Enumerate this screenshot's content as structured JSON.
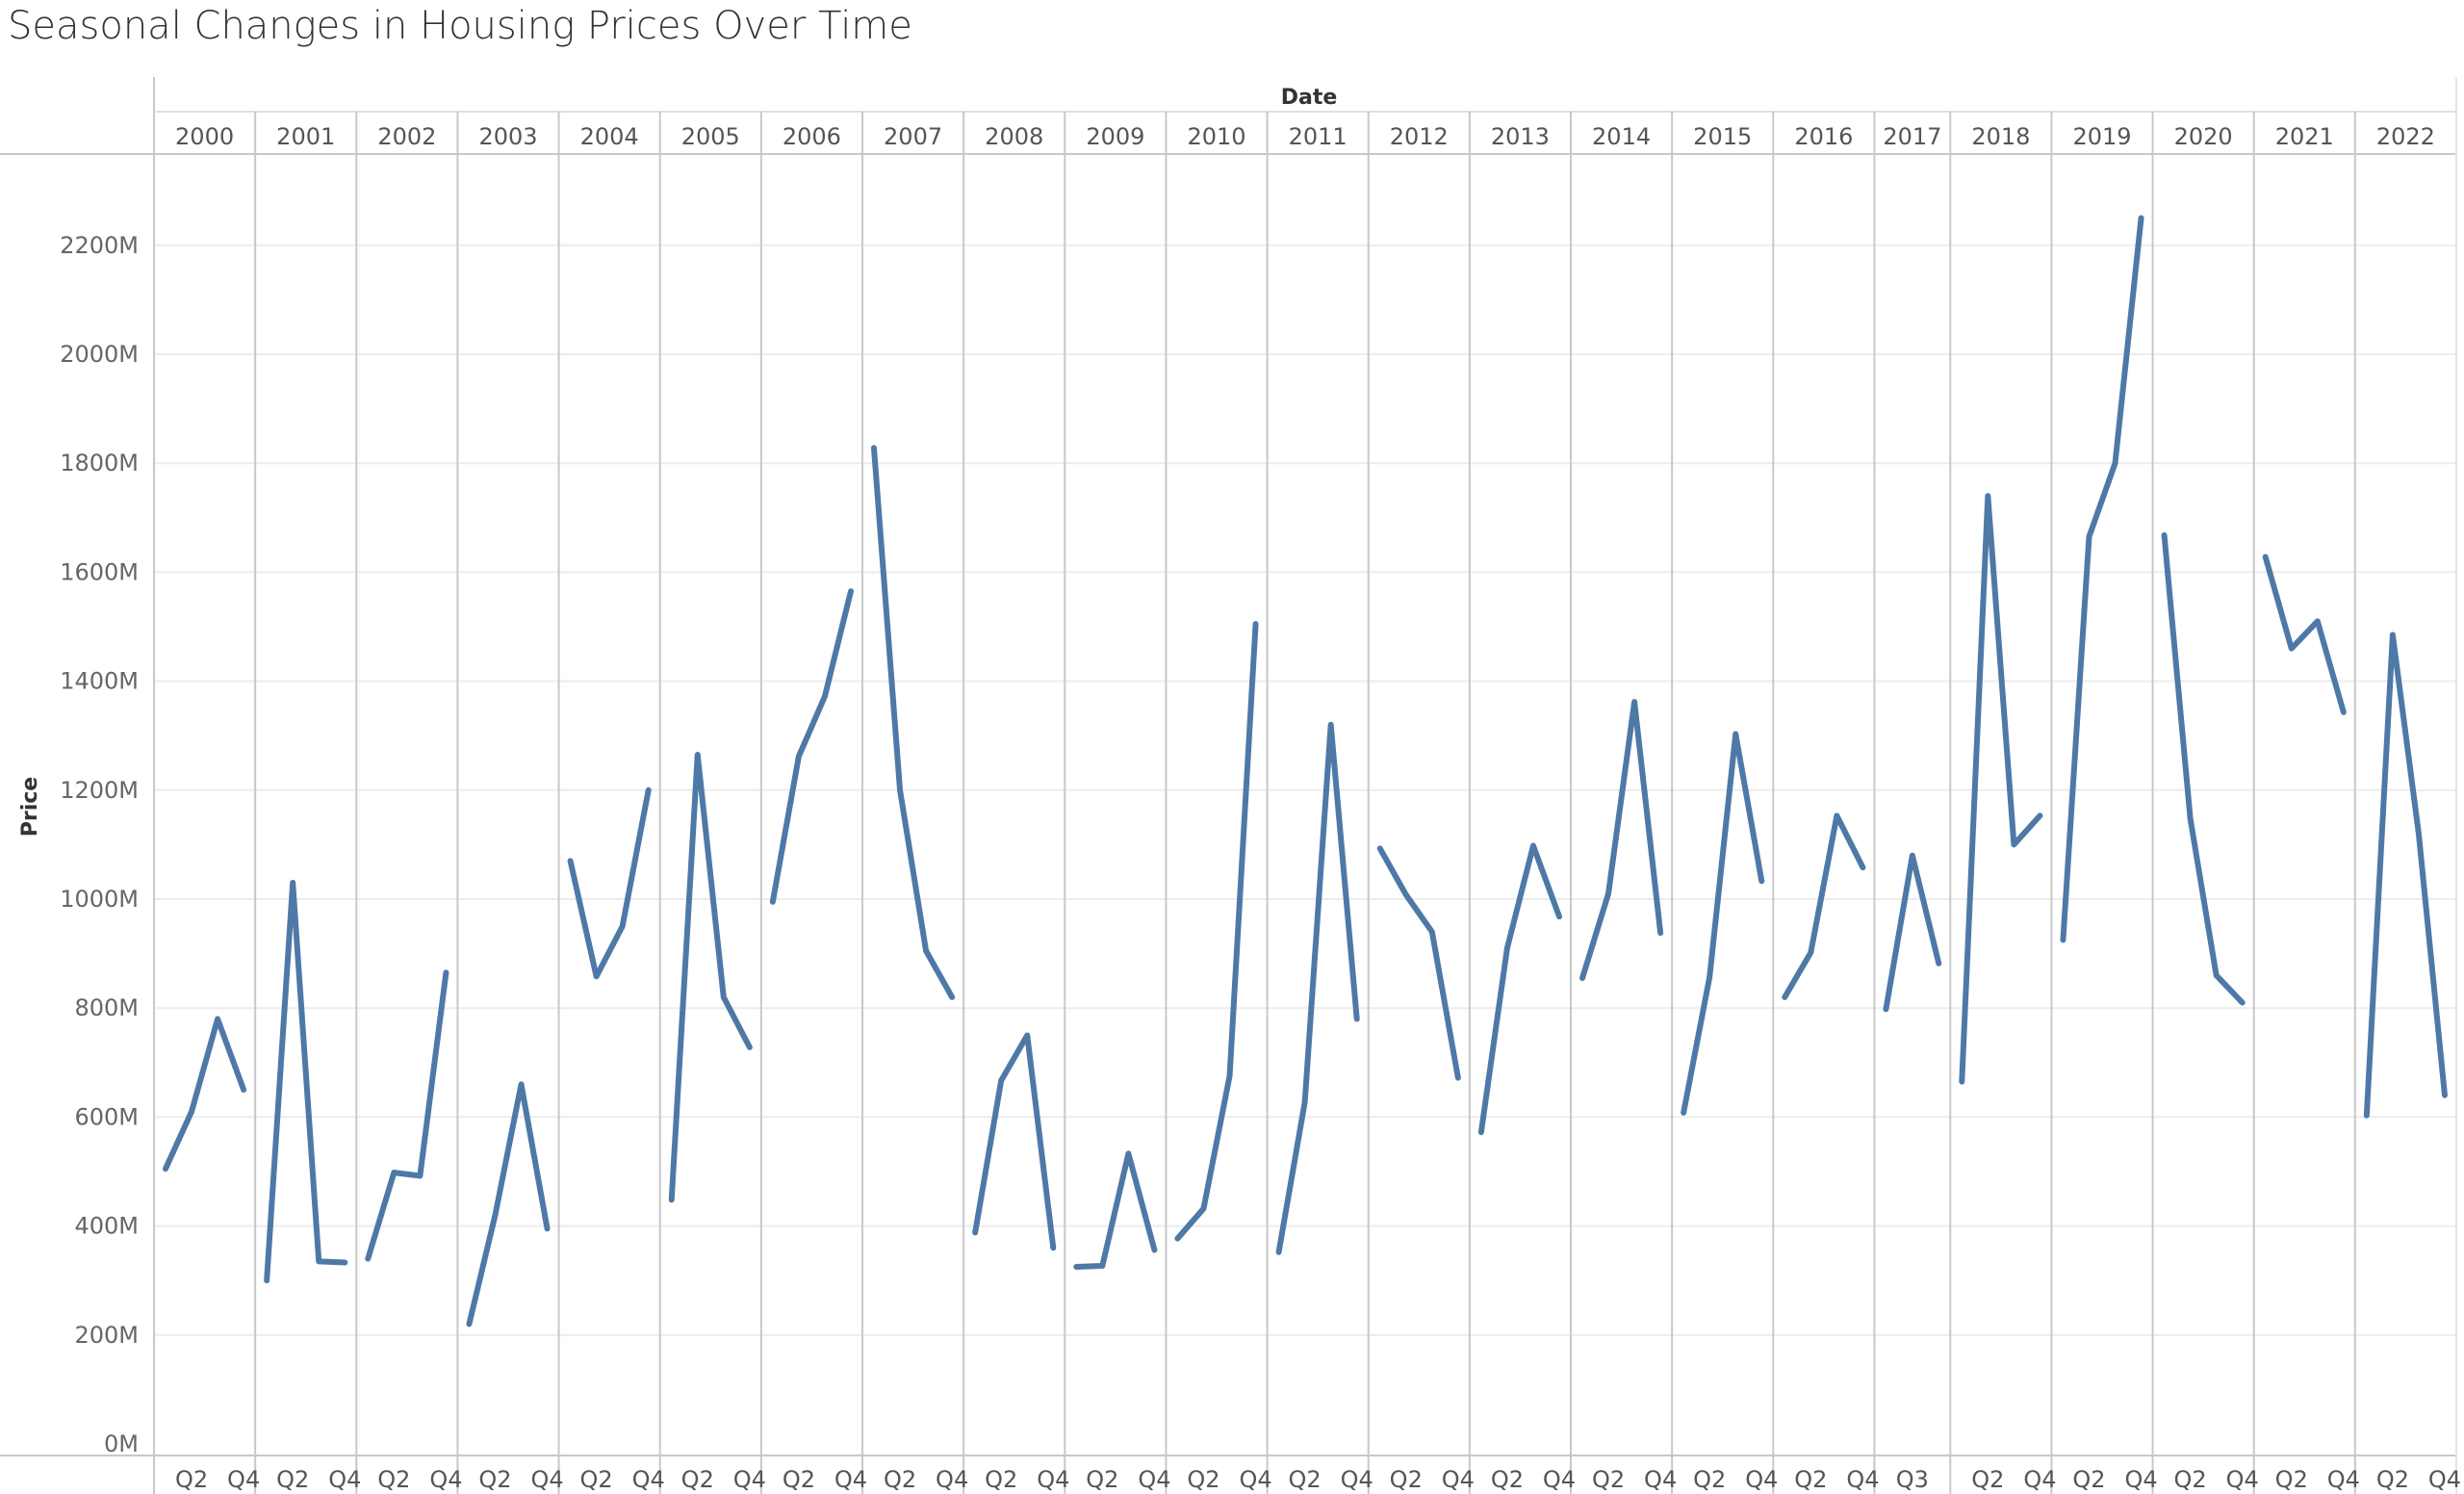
{
  "title": "Seasonal Changes in Housing Prices Over Time",
  "chart_data": {
    "type": "line",
    "title": "Seasonal Changes in Housing Prices Over Time",
    "column_header": "Date",
    "xlabel": "",
    "ylabel": "Price",
    "ylim": [
      0,
      2300000000
    ],
    "y_ticks": [
      0,
      200000000,
      400000000,
      600000000,
      800000000,
      1000000000,
      1200000000,
      1400000000,
      1600000000,
      1800000000,
      2000000000,
      2200000000
    ],
    "y_tick_labels": [
      "0M",
      "200M",
      "400M",
      "600M",
      "800M",
      "1000M",
      "1200M",
      "1400M",
      "1600M",
      "1800M",
      "2000M",
      "2200M"
    ],
    "grid": true,
    "legend": "none",
    "color": "#4e79a7",
    "series": [
      {
        "year": "2000",
        "quarters": [
          "Q1",
          "Q2",
          "Q3",
          "Q4"
        ],
        "values": [
          505000000,
          610000000,
          780000000,
          650000000
        ],
        "tick_labels": [
          "Q2",
          "Q4"
        ]
      },
      {
        "year": "2001",
        "quarters": [
          "Q1",
          "Q2",
          "Q3",
          "Q4"
        ],
        "values": [
          300000000,
          1030000000,
          335000000,
          333000000
        ],
        "tick_labels": [
          "Q2",
          "Q4"
        ]
      },
      {
        "year": "2002",
        "quarters": [
          "Q1",
          "Q2",
          "Q3",
          "Q4"
        ],
        "values": [
          340000000,
          498000000,
          492000000,
          865000000
        ],
        "tick_labels": [
          "Q2",
          "Q4"
        ]
      },
      {
        "year": "2003",
        "quarters": [
          "Q1",
          "Q2",
          "Q3",
          "Q4"
        ],
        "values": [
          220000000,
          420000000,
          660000000,
          395000000
        ],
        "tick_labels": [
          "Q2",
          "Q4"
        ]
      },
      {
        "year": "2004",
        "quarters": [
          "Q1",
          "Q2",
          "Q3",
          "Q4"
        ],
        "values": [
          1070000000,
          858000000,
          950000000,
          1200000000
        ],
        "tick_labels": [
          "Q2",
          "Q4"
        ]
      },
      {
        "year": "2005",
        "quarters": [
          "Q1",
          "Q2",
          "Q3",
          "Q4"
        ],
        "values": [
          448000000,
          1265000000,
          820000000,
          728000000
        ],
        "tick_labels": [
          "Q2",
          "Q4"
        ]
      },
      {
        "year": "2006",
        "quarters": [
          "Q1",
          "Q2",
          "Q3",
          "Q4"
        ],
        "values": [
          995000000,
          1262000000,
          1372000000,
          1565000000
        ],
        "tick_labels": [
          "Q2",
          "Q4"
        ]
      },
      {
        "year": "2007",
        "quarters": [
          "Q1",
          "Q2",
          "Q3",
          "Q4"
        ],
        "values": [
          1828000000,
          1200000000,
          905000000,
          820000000
        ],
        "tick_labels": [
          "Q2",
          "Q4"
        ]
      },
      {
        "year": "2008",
        "quarters": [
          "Q1",
          "Q2",
          "Q3",
          "Q4"
        ],
        "values": [
          388000000,
          667000000,
          750000000,
          360000000
        ],
        "tick_labels": [
          "Q2",
          "Q4"
        ]
      },
      {
        "year": "2009",
        "quarters": [
          "Q1",
          "Q2",
          "Q3",
          "Q4"
        ],
        "values": [
          325000000,
          327000000,
          533000000,
          356000000
        ],
        "tick_labels": [
          "Q2",
          "Q4"
        ]
      },
      {
        "year": "2010",
        "quarters": [
          "Q1",
          "Q2",
          "Q3",
          "Q4"
        ],
        "values": [
          377000000,
          432000000,
          675000000,
          1505000000
        ],
        "tick_labels": [
          "Q2",
          "Q4"
        ]
      },
      {
        "year": "2011",
        "quarters": [
          "Q1",
          "Q2",
          "Q3",
          "Q4"
        ],
        "values": [
          352000000,
          627000000,
          1320000000,
          780000000
        ],
        "tick_labels": [
          "Q2",
          "Q4"
        ]
      },
      {
        "year": "2012",
        "quarters": [
          "Q1",
          "Q2",
          "Q3",
          "Q4"
        ],
        "values": [
          1093000000,
          1008000000,
          940000000,
          672000000
        ],
        "tick_labels": [
          "Q2",
          "Q4"
        ]
      },
      {
        "year": "2013",
        "quarters": [
          "Q1",
          "Q2",
          "Q3",
          "Q4"
        ],
        "values": [
          572000000,
          910000000,
          1098000000,
          968000000
        ],
        "tick_labels": [
          "Q2",
          "Q4"
        ]
      },
      {
        "year": "2014",
        "quarters": [
          "Q1",
          "Q2",
          "Q3",
          "Q4"
        ],
        "values": [
          855000000,
          1010000000,
          1362000000,
          938000000
        ],
        "tick_labels": [
          "Q2",
          "Q4"
        ]
      },
      {
        "year": "2015",
        "quarters": [
          "Q1",
          "Q2",
          "Q3",
          "Q4"
        ],
        "values": [
          608000000,
          857000000,
          1303000000,
          1033000000
        ],
        "tick_labels": [
          "Q2",
          "Q4"
        ]
      },
      {
        "year": "2016",
        "quarters": [
          "Q1",
          "Q2",
          "Q3",
          "Q4"
        ],
        "values": [
          820000000,
          902000000,
          1153000000,
          1058000000
        ],
        "tick_labels": [
          "Q2",
          "Q4"
        ]
      },
      {
        "year": "2017",
        "quarters": [
          "Q2",
          "Q3",
          "Q4"
        ],
        "values": [
          798000000,
          1080000000,
          882000000
        ],
        "tick_labels": [
          "Q3"
        ]
      },
      {
        "year": "2018",
        "quarters": [
          "Q1",
          "Q2",
          "Q3",
          "Q4"
        ],
        "values": [
          665000000,
          1740000000,
          1100000000,
          1153000000
        ],
        "tick_labels": [
          "Q2",
          "Q4"
        ]
      },
      {
        "year": "2019",
        "quarters": [
          "Q1",
          "Q2",
          "Q3",
          "Q4"
        ],
        "values": [
          925000000,
          1665000000,
          1800000000,
          2250000000
        ],
        "tick_labels": [
          "Q2",
          "Q4"
        ]
      },
      {
        "year": "2020",
        "quarters": [
          "Q1",
          "Q2",
          "Q3",
          "Q4"
        ],
        "values": [
          1668000000,
          1148000000,
          860000000,
          810000000
        ],
        "tick_labels": [
          "Q2",
          "Q4"
        ]
      },
      {
        "year": "2021",
        "quarters": [
          "Q1",
          "Q2",
          "Q3",
          "Q4"
        ],
        "values": [
          1628000000,
          1460000000,
          1510000000,
          1343000000
        ],
        "tick_labels": [
          "Q2",
          "Q4"
        ]
      },
      {
        "year": "2022",
        "quarters": [
          "Q1",
          "Q2",
          "Q3",
          "Q4"
        ],
        "values": [
          603000000,
          1485000000,
          1120000000,
          640000000
        ],
        "tick_labels": [
          "Q2",
          "Q4"
        ]
      }
    ]
  }
}
